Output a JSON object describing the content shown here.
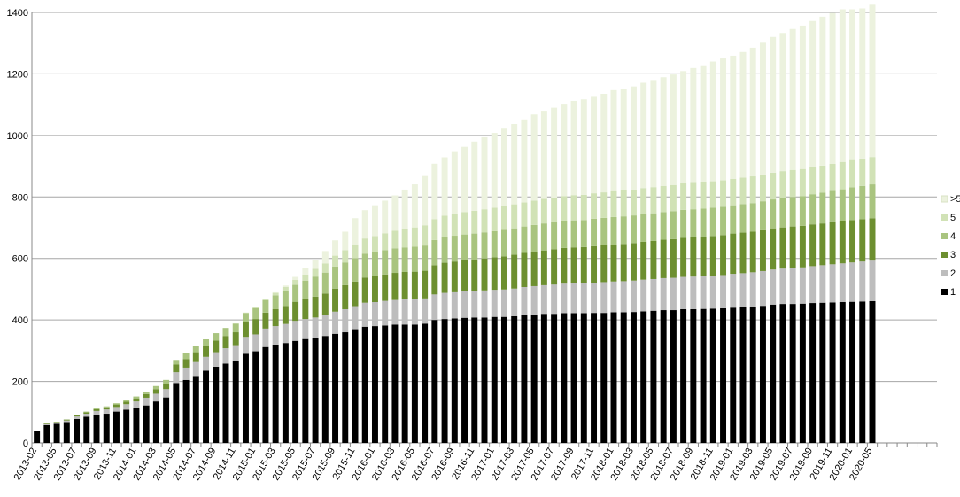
{
  "chart_data": {
    "type": "bar",
    "stacked": true,
    "title": "",
    "xlabel": "",
    "ylabel": "",
    "ylim": [
      0,
      1400
    ],
    "yticks": [
      0,
      200,
      400,
      600,
      800,
      1000,
      1200,
      1400
    ],
    "grid": true,
    "legend_position": "right",
    "x_tick_labels": [
      "2013-02",
      "2013-05",
      "2013-07",
      "2013-09",
      "2013-11",
      "2014-01",
      "2014-03",
      "2014-05",
      "2014-07",
      "2014-09",
      "2014-11",
      "2015-01",
      "2015-03",
      "2015-05",
      "2015-07",
      "2015-09",
      "2015-11",
      "2016-01",
      "2016-03",
      "2016-05",
      "2016-07",
      "2016-09",
      "2016-11",
      "2017-01",
      "2017-03",
      "2017-05",
      "2017-07",
      "2017-09",
      "2017-11",
      "2018-01",
      "2018-03",
      "2018-05",
      "2018-07",
      "2018-09",
      "2018-11",
      "2019-01",
      "2019-03",
      "2019-05",
      "2019-07",
      "2019-09",
      "2019-11",
      "2020-01",
      "2020-05"
    ],
    "categories": [
      "2013-02",
      "2013-04",
      "2013-05",
      "2013-06",
      "2013-07",
      "2013-08",
      "2013-09",
      "2013-10",
      "2013-11",
      "2013-12",
      "2014-01",
      "2014-02",
      "2014-03",
      "2014-04",
      "2014-05",
      "2014-06",
      "2014-07",
      "2014-08",
      "2014-09",
      "2014-10",
      "2014-11",
      "2014-12",
      "2015-01",
      "2015-02",
      "2015-03",
      "2015-04",
      "2015-05",
      "2015-06",
      "2015-07",
      "2015-08",
      "2015-09",
      "2015-10",
      "2015-11",
      "2015-12",
      "2016-01",
      "2016-02",
      "2016-03",
      "2016-04",
      "2016-05",
      "2016-06",
      "2016-07",
      "2016-08",
      "2016-09",
      "2016-10",
      "2016-11",
      "2016-12",
      "2017-01",
      "2017-02",
      "2017-03",
      "2017-04",
      "2017-05",
      "2017-06",
      "2017-07",
      "2017-08",
      "2017-09",
      "2017-10",
      "2017-11",
      "2017-12",
      "2018-01",
      "2018-02",
      "2018-03",
      "2018-04",
      "2018-05",
      "2018-06",
      "2018-07",
      "2018-08",
      "2018-09",
      "2018-10",
      "2018-11",
      "2018-12",
      "2019-01",
      "2019-02",
      "2019-03",
      "2019-04",
      "2019-05",
      "2019-06",
      "2019-07",
      "2019-08",
      "2019-09",
      "2019-10",
      "2019-11",
      "2019-12",
      "2020-01",
      "2020-02",
      "2020-05"
    ],
    "empty_slots_after": 6,
    "series": [
      {
        "name": "1",
        "color": "#000000",
        "values": [
          38,
          58,
          62,
          68,
          78,
          85,
          92,
          95,
          102,
          108,
          113,
          122,
          135,
          148,
          195,
          205,
          218,
          235,
          248,
          258,
          268,
          290,
          298,
          312,
          320,
          325,
          332,
          338,
          340,
          348,
          355,
          360,
          370,
          378,
          380,
          382,
          385,
          385,
          385,
          388,
          400,
          403,
          405,
          407,
          408,
          408,
          410,
          410,
          412,
          415,
          418,
          420,
          420,
          422,
          422,
          422,
          423,
          423,
          425,
          425,
          426,
          428,
          430,
          432,
          432,
          435,
          435,
          436,
          437,
          438,
          440,
          441,
          443,
          446,
          450,
          452,
          452,
          453,
          455,
          456,
          457,
          458,
          459,
          460,
          461
        ]
      },
      {
        "name": "2",
        "color": "#bdbdbd",
        "values": [
          0,
          3,
          4,
          5,
          8,
          10,
          12,
          14,
          15,
          18,
          22,
          25,
          25,
          27,
          35,
          40,
          45,
          45,
          47,
          50,
          50,
          55,
          55,
          60,
          60,
          62,
          65,
          65,
          68,
          68,
          72,
          75,
          75,
          78,
          78,
          80,
          80,
          82,
          82,
          82,
          83,
          85,
          85,
          86,
          86,
          88,
          88,
          89,
          90,
          92,
          92,
          93,
          95,
          96,
          97,
          97,
          98,
          100,
          100,
          101,
          102,
          103,
          103,
          104,
          105,
          105,
          106,
          107,
          107,
          108,
          110,
          111,
          112,
          113,
          114,
          115,
          117,
          118,
          120,
          122,
          124,
          126,
          128,
          130,
          132
        ]
      },
      {
        "name": "3",
        "color": "#6d8f30",
        "values": [
          0,
          2,
          2,
          3,
          4,
          5,
          6,
          7,
          8,
          8,
          10,
          12,
          15,
          18,
          25,
          28,
          32,
          35,
          38,
          40,
          42,
          47,
          50,
          52,
          55,
          58,
          62,
          65,
          68,
          70,
          75,
          78,
          80,
          82,
          85,
          86,
          88,
          89,
          90,
          90,
          95,
          98,
          100,
          101,
          102,
          104,
          106,
          108,
          110,
          111,
          112,
          113,
          115,
          116,
          117,
          118,
          119,
          120,
          120,
          121,
          122,
          123,
          124,
          125,
          126,
          127,
          128,
          128,
          129,
          130,
          131,
          132,
          132,
          133,
          134,
          134,
          135,
          135,
          136,
          136,
          137,
          137,
          138,
          138,
          138
        ]
      },
      {
        "name": "4",
        "color": "#a9c47f",
        "values": [
          0,
          0,
          0,
          0,
          1,
          2,
          3,
          3,
          4,
          5,
          6,
          8,
          10,
          12,
          15,
          18,
          20,
          22,
          24,
          26,
          28,
          30,
          35,
          40,
          45,
          50,
          55,
          60,
          65,
          68,
          72,
          74,
          76,
          77,
          78,
          79,
          80,
          80,
          81,
          82,
          82,
          83,
          84,
          84,
          85,
          85,
          85,
          86,
          86,
          86,
          87,
          88,
          88,
          88,
          88,
          88,
          89,
          89,
          90,
          90,
          90,
          90,
          90,
          90,
          91,
          91,
          91,
          91,
          92,
          92,
          92,
          93,
          93,
          94,
          94,
          95,
          96,
          97,
          98,
          100,
          102,
          104,
          106,
          108,
          110
        ]
      },
      {
        "name": "5",
        "color": "#d1e2b6",
        "values": [
          0,
          0,
          0,
          0,
          0,
          0,
          0,
          0,
          0,
          0,
          0,
          0,
          0,
          0,
          0,
          0,
          0,
          0,
          0,
          0,
          1,
          2,
          3,
          5,
          8,
          12,
          16,
          20,
          25,
          30,
          35,
          40,
          45,
          50,
          52,
          55,
          57,
          60,
          63,
          66,
          68,
          70,
          72,
          73,
          74,
          75,
          76,
          77,
          78,
          78,
          79,
          80,
          80,
          81,
          82,
          82,
          83,
          83,
          84,
          84,
          84,
          85,
          85,
          85,
          85,
          86,
          86,
          86,
          86,
          86,
          86,
          86,
          87,
          87,
          87,
          88,
          88,
          88,
          88,
          88,
          88,
          89,
          89,
          89,
          89
        ]
      },
      {
        "name": ">5",
        "color": "#ecf2de",
        "values": [
          0,
          0,
          0,
          0,
          0,
          0,
          0,
          0,
          0,
          0,
          0,
          0,
          0,
          0,
          0,
          0,
          0,
          0,
          0,
          0,
          0,
          0,
          0,
          0,
          2,
          5,
          10,
          20,
          30,
          40,
          50,
          60,
          85,
          92,
          100,
          106,
          115,
          128,
          140,
          160,
          180,
          190,
          200,
          212,
          225,
          234,
          243,
          252,
          261,
          270,
          280,
          286,
          292,
          300,
          306,
          310,
          316,
          320,
          328,
          331,
          335,
          342,
          348,
          353,
          359,
          365,
          373,
          380,
          389,
          396,
          400,
          408,
          418,
          431,
          441,
          449,
          458,
          466,
          475,
          484,
          490,
          496,
          490,
          488,
          495
        ]
      }
    ]
  }
}
